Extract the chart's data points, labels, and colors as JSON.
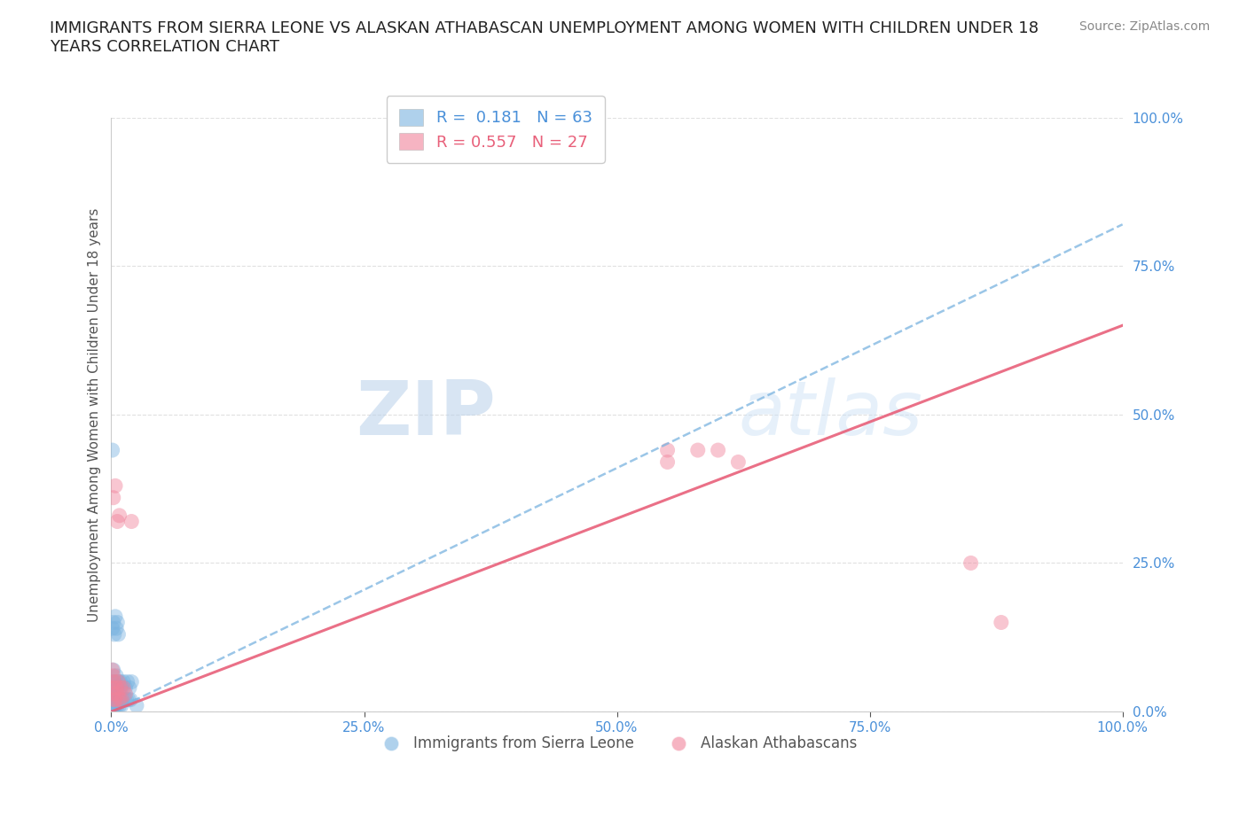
{
  "title": "IMMIGRANTS FROM SIERRA LEONE VS ALASKAN ATHABASCAN UNEMPLOYMENT AMONG WOMEN WITH CHILDREN UNDER 18\nYEARS CORRELATION CHART",
  "source_text": "Source: ZipAtlas.com",
  "ylabel": "Unemployment Among Women with Children Under 18 years",
  "watermark": "ZIPatlas",
  "legend_r_blue": "0.181",
  "legend_n_blue": "63",
  "legend_r_pink": "0.557",
  "legend_n_pink": "27",
  "legend_label_blue": "Immigrants from Sierra Leone",
  "legend_label_pink": "Alaskan Athabascans",
  "blue_scatter_x": [
    0.001,
    0.001,
    0.002,
    0.002,
    0.003,
    0.003,
    0.004,
    0.004,
    0.005,
    0.005,
    0.006,
    0.006,
    0.007,
    0.007,
    0.008,
    0.008,
    0.009,
    0.009,
    0.01,
    0.01,
    0.011,
    0.012,
    0.013,
    0.014,
    0.015,
    0.016,
    0.017,
    0.018,
    0.019,
    0.02,
    0.001,
    0.002,
    0.003,
    0.004,
    0.005,
    0.006,
    0.007,
    0.001,
    0.002,
    0.003,
    0.001,
    0.001,
    0.002,
    0.001,
    0.001,
    0.001,
    0.002,
    0.003,
    0.001,
    0.002,
    0.001,
    0.001,
    0.001,
    0.001,
    0.001,
    0.001,
    0.001,
    0.001,
    0.025,
    0.004,
    0.001,
    0.001,
    0.001
  ],
  "blue_scatter_y": [
    0.02,
    0.05,
    0.03,
    0.07,
    0.02,
    0.05,
    0.01,
    0.04,
    0.02,
    0.06,
    0.01,
    0.04,
    0.02,
    0.05,
    0.01,
    0.04,
    0.02,
    0.05,
    0.01,
    0.04,
    0.02,
    0.05,
    0.02,
    0.04,
    0.02,
    0.05,
    0.02,
    0.04,
    0.02,
    0.05,
    0.14,
    0.15,
    0.13,
    0.16,
    0.14,
    0.15,
    0.13,
    0.44,
    0.01,
    0.02,
    0.01,
    0.02,
    0.01,
    0.03,
    0.02,
    0.01,
    0.02,
    0.01,
    0.04,
    0.03,
    0.02,
    0.01,
    0.03,
    0.02,
    0.01,
    0.03,
    0.02,
    0.01,
    0.01,
    0.01,
    0.01,
    0.01,
    0.01
  ],
  "pink_scatter_x": [
    0.001,
    0.001,
    0.002,
    0.002,
    0.003,
    0.003,
    0.004,
    0.005,
    0.006,
    0.007,
    0.008,
    0.009,
    0.01,
    0.012,
    0.014,
    0.002,
    0.004,
    0.006,
    0.008,
    0.55,
    0.6,
    0.55,
    0.58,
    0.62,
    0.85,
    0.88,
    0.02
  ],
  "pink_scatter_y": [
    0.04,
    0.07,
    0.03,
    0.06,
    0.02,
    0.05,
    0.02,
    0.04,
    0.03,
    0.05,
    0.02,
    0.04,
    0.02,
    0.04,
    0.03,
    0.36,
    0.38,
    0.32,
    0.33,
    0.44,
    0.44,
    0.42,
    0.44,
    0.42,
    0.25,
    0.15,
    0.32
  ],
  "blue_line_x": [
    0.0,
    1.0
  ],
  "blue_line_y": [
    0.0,
    0.82
  ],
  "pink_line_x": [
    0.0,
    1.0
  ],
  "pink_line_y": [
    0.0,
    0.65
  ],
  "xlim": [
    0.0,
    1.0
  ],
  "ylim": [
    0.0,
    1.0
  ],
  "blue_color": "#7ab3e0",
  "pink_color": "#f0829a",
  "blue_line_color": "#7ab3e0",
  "pink_line_color": "#e8607a",
  "grid_color": "#dddddd",
  "bg_color": "#ffffff",
  "title_fontsize": 13,
  "axis_label_fontsize": 11,
  "tick_fontsize": 11,
  "source_fontsize": 10
}
